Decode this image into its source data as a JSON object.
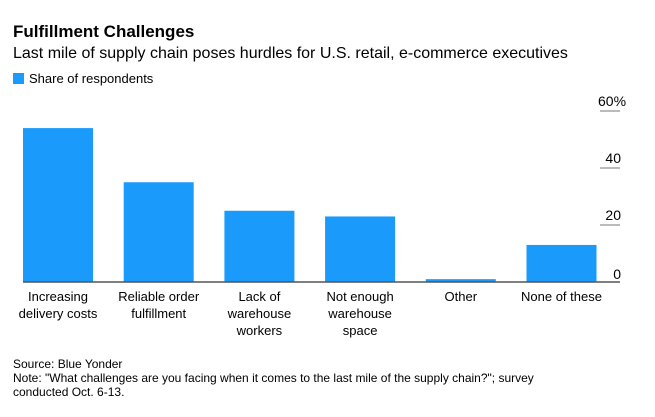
{
  "chart_data": {
    "type": "bar",
    "title": "Fulfillment Challenges",
    "subtitle": "Last mile of supply chain poses hurdles for U.S. retail, e-commerce executives",
    "categories": [
      [
        "Increasing",
        "delivery costs"
      ],
      [
        "Reliable order",
        "fulfillment"
      ],
      [
        "Lack of",
        "warehouse",
        "workers"
      ],
      [
        "Not enough",
        "warehouse",
        "space"
      ],
      [
        "Other"
      ],
      [
        "None of these"
      ]
    ],
    "series": [
      {
        "name": "Share of respondents",
        "values": [
          54,
          35,
          25,
          23,
          1,
          13
        ],
        "color": "#1a9bfc"
      }
    ],
    "ylim": [
      0,
      60
    ],
    "yticks": [
      0,
      20,
      40,
      60
    ],
    "ytick_labels": [
      "0",
      "20",
      "40",
      "60%"
    ],
    "y_axis_position": "right",
    "grid": false,
    "legend": "top-left"
  },
  "footer": {
    "source": "Source: Blue Yonder",
    "note": "Note: \"What challenges are you facing when it comes to the last mile of the supply chain?\"; survey conducted Oct. 6-13."
  }
}
